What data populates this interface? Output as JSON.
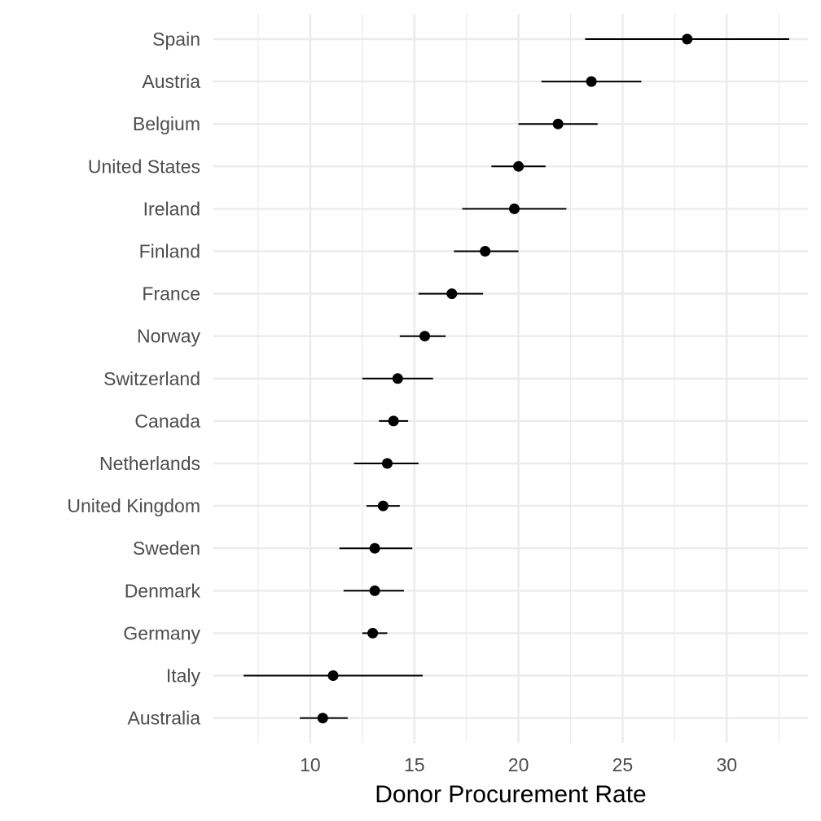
{
  "chart_data": {
    "type": "scatter",
    "title": "",
    "xlabel": "Donor Procurement Rate",
    "ylabel": "",
    "xlim": [
      5.35,
      33.9
    ],
    "xticks": [
      10,
      15,
      20,
      25,
      30
    ],
    "xtick_labels": [
      "10",
      "15",
      "20",
      "25",
      "30"
    ],
    "grid": true,
    "legend": "none",
    "marker_color": "#000000",
    "grid_color": "#ebebeb",
    "categories": [
      "Spain",
      "Austria",
      "Belgium",
      "United States",
      "Ireland",
      "Finland",
      "France",
      "Norway",
      "Switzerland",
      "Canada",
      "Netherlands",
      "United Kingdom",
      "Sweden",
      "Denmark",
      "Germany",
      "Italy",
      "Australia"
    ],
    "points": [
      {
        "label": "Spain",
        "value": 28.1,
        "low": 23.2,
        "high": 33.0
      },
      {
        "label": "Austria",
        "value": 23.5,
        "low": 21.1,
        "high": 25.9
      },
      {
        "label": "Belgium",
        "value": 21.9,
        "low": 20.0,
        "high": 23.8
      },
      {
        "label": "United States",
        "value": 20.0,
        "low": 18.7,
        "high": 21.3
      },
      {
        "label": "Ireland",
        "value": 19.8,
        "low": 17.3,
        "high": 22.3
      },
      {
        "label": "Finland",
        "value": 18.4,
        "low": 16.9,
        "high": 20.0
      },
      {
        "label": "France",
        "value": 16.8,
        "low": 15.2,
        "high": 18.3
      },
      {
        "label": "Norway",
        "value": 15.5,
        "low": 14.3,
        "high": 16.5
      },
      {
        "label": "Switzerland",
        "value": 14.2,
        "low": 12.5,
        "high": 15.9
      },
      {
        "label": "Canada",
        "value": 14.0,
        "low": 13.3,
        "high": 14.7
      },
      {
        "label": "Netherlands",
        "value": 13.7,
        "low": 12.1,
        "high": 15.2
      },
      {
        "label": "United Kingdom",
        "value": 13.5,
        "low": 12.7,
        "high": 14.3
      },
      {
        "label": "Sweden",
        "value": 13.1,
        "low": 11.4,
        "high": 14.9
      },
      {
        "label": "Denmark",
        "value": 13.1,
        "low": 11.6,
        "high": 14.5
      },
      {
        "label": "Germany",
        "value": 13.0,
        "low": 12.5,
        "high": 13.7
      },
      {
        "label": "Italy",
        "value": 11.1,
        "low": 6.8,
        "high": 15.4
      },
      {
        "label": "Australia",
        "value": 10.6,
        "low": 9.5,
        "high": 11.8
      }
    ]
  }
}
